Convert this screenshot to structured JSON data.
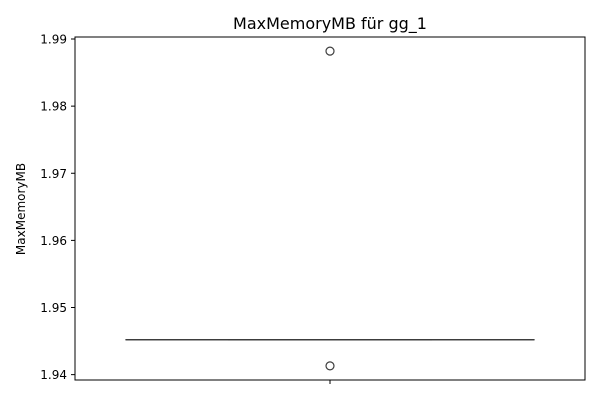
{
  "chart_data": {
    "type": "box",
    "title": "MaxMemoryMB für gg_1",
    "xlabel": "",
    "ylabel": "MaxMemoryMB",
    "ylim": [
      1.9392,
      1.9903
    ],
    "yticks": [
      1.94,
      1.95,
      1.96,
      1.97,
      1.98,
      1.99
    ],
    "ytick_labels": [
      "1.94",
      "1.95",
      "1.96",
      "1.97",
      "1.98",
      "1.99"
    ],
    "grid": false,
    "series": [
      {
        "q1": 1.9452,
        "median": 1.9452,
        "q3": 1.9452,
        "whisker_low": 1.9452,
        "whisker_high": 1.9452,
        "outliers": [
          1.9882,
          1.9413
        ]
      }
    ],
    "colors": {
      "box_line": "#3d3d3d",
      "outlier_edge": "#3d3d3d",
      "axis": "#000000"
    }
  }
}
